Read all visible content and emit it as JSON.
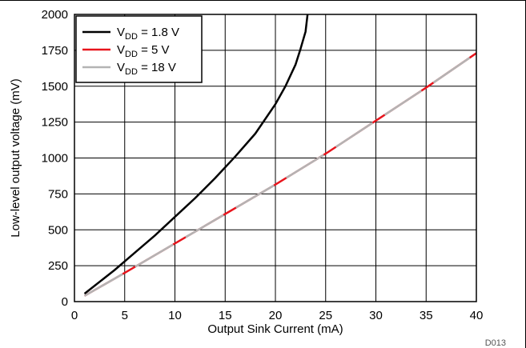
{
  "chart_data": {
    "type": "line",
    "xlabel": "Output Sink Current (mA)",
    "ylabel": "Low-level output voltage (mV)",
    "xlim": [
      0,
      40
    ],
    "ylim": [
      0,
      2000
    ],
    "x_ticks": [
      0,
      5,
      10,
      15,
      20,
      25,
      30,
      35,
      40
    ],
    "y_ticks": [
      0,
      250,
      500,
      750,
      1000,
      1250,
      1500,
      1750,
      2000
    ],
    "grid": true,
    "legend_position": "top-left",
    "figure_id": "D013",
    "series": [
      {
        "name": "V_DD = 1.8 V",
        "name_main": "V",
        "name_sub": "DD",
        "name_rest": " = 1.8 V",
        "color": "#000000",
        "style": "solid",
        "x": [
          1,
          2,
          4,
          6,
          8,
          10,
          12,
          14,
          16,
          18,
          20,
          21,
          22,
          22.5,
          23,
          23.2
        ],
        "y": [
          55,
          110,
          220,
          340,
          460,
          590,
          720,
          860,
          1010,
          1170,
          1375,
          1500,
          1650,
          1760,
          1880,
          2000
        ]
      },
      {
        "name": "V_DD = 5 V",
        "name_main": "V",
        "name_sub": "DD",
        "name_rest": " = 5 V",
        "color": "#e8141c",
        "style": "solid",
        "x": [
          1,
          5,
          10,
          15,
          20,
          25,
          30,
          35,
          40
        ],
        "y": [
          40,
          200,
          405,
          610,
          815,
          1030,
          1260,
          1490,
          1730
        ]
      },
      {
        "name": "V_DD = 18 V",
        "name_main": "V",
        "name_sub": "DD",
        "name_rest": " = 18 V",
        "color": "#b4b4b4",
        "style": "dashed",
        "x": [
          1,
          5,
          10,
          15,
          20,
          25,
          30,
          35,
          40
        ],
        "y": [
          40,
          200,
          405,
          610,
          815,
          1030,
          1260,
          1490,
          1730
        ]
      }
    ]
  }
}
